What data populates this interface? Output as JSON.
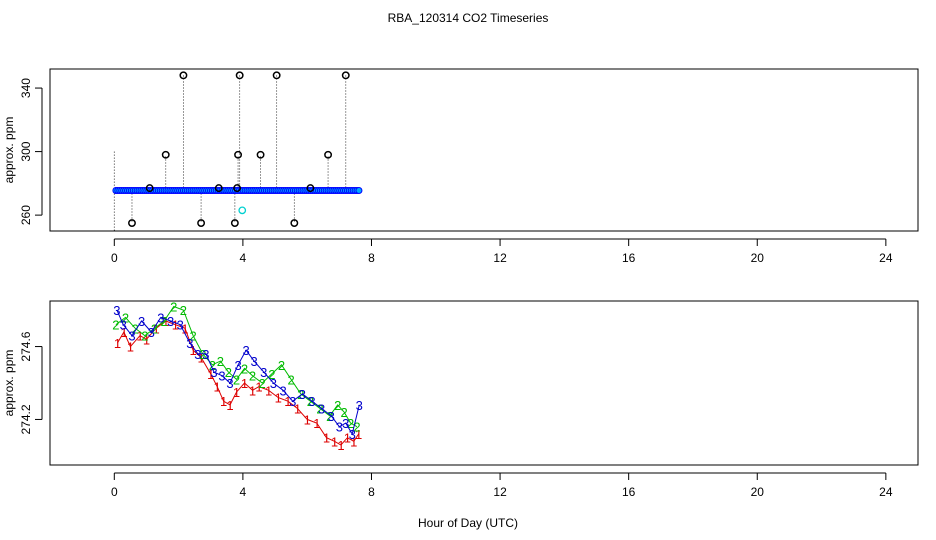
{
  "title": "RBA_120314  CO2 Timeseries",
  "xlabel": "Hour of Day (UTC)",
  "chart_data": [
    {
      "type": "scatter",
      "title": "",
      "ylabel": "approx. ppm",
      "xlabel": "",
      "xlim": [
        -2,
        25
      ],
      "ylim": [
        250,
        352
      ],
      "xticks": [
        0,
        4,
        8,
        12,
        16,
        20,
        24
      ],
      "yticks": [
        260,
        300,
        340
      ],
      "baseline": 275.5,
      "baseline_step": 0.06,
      "baseline_range": [
        0.05,
        7.65
      ],
      "grid": false,
      "colors": {
        "outlier": "#000000",
        "baseline": "#0000ff",
        "fill": "#00aaff",
        "minor": "#00d0d0"
      },
      "outliers": [
        {
          "x": 0.55,
          "y": 255
        },
        {
          "x": 1.1,
          "y": 277
        },
        {
          "x": 1.6,
          "y": 298
        },
        {
          "x": 2.15,
          "y": 348
        },
        {
          "x": 2.7,
          "y": 255
        },
        {
          "x": 3.25,
          "y": 277
        },
        {
          "x": 3.75,
          "y": 255
        },
        {
          "x": 3.82,
          "y": 277
        },
        {
          "x": 3.85,
          "y": 298
        },
        {
          "x": 3.9,
          "y": 348
        },
        {
          "x": 4.55,
          "y": 298
        },
        {
          "x": 5.05,
          "y": 348
        },
        {
          "x": 5.6,
          "y": 255
        },
        {
          "x": 6.1,
          "y": 277
        },
        {
          "x": 6.65,
          "y": 298
        },
        {
          "x": 7.2,
          "y": 348
        }
      ],
      "minor_points": [
        {
          "x": 3.98,
          "y": 263
        }
      ]
    },
    {
      "type": "line",
      "title": "",
      "ylabel": "approx. ppm",
      "xlabel": "",
      "xlim": [
        -2,
        25
      ],
      "ylim": [
        273.95,
        274.85
      ],
      "xticks": [
        0,
        4,
        8,
        12,
        16,
        20,
        24
      ],
      "yticks": [
        274.2,
        274.6
      ],
      "yticklabels": [
        "274.2",
        "274.6"
      ],
      "grid": false,
      "series": [
        {
          "marker": "1",
          "color": "#dd0000",
          "x": [
            0.1,
            0.3,
            0.5,
            0.8,
            1.0,
            1.3,
            1.6,
            1.9,
            2.2,
            2.45,
            2.7,
            3.0,
            3.2,
            3.4,
            3.6,
            3.8,
            4.05,
            4.3,
            4.5,
            4.8,
            5.1,
            5.4,
            5.7,
            6.0,
            6.3,
            6.6,
            6.85,
            7.05,
            7.25,
            7.45,
            7.6
          ],
          "y": [
            274.62,
            274.68,
            274.6,
            274.66,
            274.64,
            274.7,
            274.74,
            274.72,
            274.7,
            274.58,
            274.54,
            274.45,
            274.38,
            274.3,
            274.28,
            274.35,
            274.4,
            274.36,
            274.38,
            274.36,
            274.32,
            274.3,
            274.26,
            274.2,
            274.18,
            274.1,
            274.08,
            274.06,
            274.1,
            274.08,
            274.12
          ]
        },
        {
          "marker": "2",
          "color": "#00bb00",
          "x": [
            0.05,
            0.35,
            0.65,
            0.95,
            1.25,
            1.55,
            1.85,
            2.15,
            2.45,
            2.75,
            3.05,
            3.3,
            3.55,
            3.8,
            4.05,
            4.3,
            4.6,
            4.9,
            5.2,
            5.5,
            5.8,
            6.1,
            6.4,
            6.7,
            6.95,
            7.15,
            7.35,
            7.55
          ],
          "y": [
            274.72,
            274.76,
            274.7,
            274.66,
            274.7,
            274.74,
            274.82,
            274.8,
            274.66,
            274.56,
            274.5,
            274.52,
            274.46,
            274.42,
            274.48,
            274.44,
            274.4,
            274.45,
            274.5,
            274.42,
            274.34,
            274.3,
            274.26,
            274.22,
            274.28,
            274.24,
            274.18,
            274.16
          ]
        },
        {
          "marker": "3",
          "color": "#0000cc",
          "x": [
            0.08,
            0.28,
            0.55,
            0.85,
            1.15,
            1.45,
            1.75,
            2.05,
            2.35,
            2.6,
            2.85,
            3.1,
            3.35,
            3.6,
            3.85,
            4.1,
            4.35,
            4.65,
            4.95,
            5.25,
            5.55,
            5.85,
            6.15,
            6.45,
            6.75,
            7.0,
            7.2,
            7.4,
            7.62
          ],
          "y": [
            274.8,
            274.72,
            274.66,
            274.74,
            274.68,
            274.76,
            274.74,
            274.72,
            274.62,
            274.56,
            274.56,
            274.46,
            274.44,
            274.4,
            274.5,
            274.58,
            274.52,
            274.46,
            274.4,
            274.36,
            274.3,
            274.34,
            274.3,
            274.26,
            274.22,
            274.16,
            274.18,
            274.12,
            274.28
          ]
        }
      ]
    }
  ]
}
